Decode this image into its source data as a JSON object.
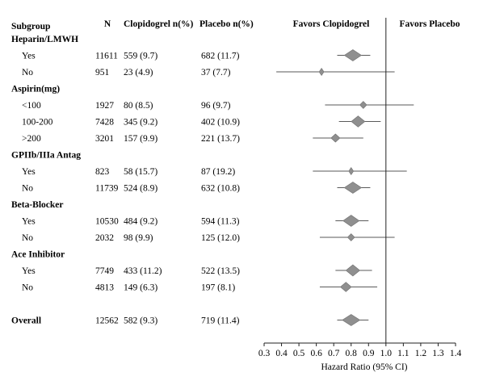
{
  "chart_data": {
    "type": "forest",
    "headers": {
      "subgroup": "Subgroup",
      "n": "N",
      "clop": "Clopidogrel n(%)",
      "plac": "Placebo n(%)",
      "favors_left": "Favors Clopidogrel",
      "favors_right": "Favors Placebo"
    },
    "xlabel": "Hazard Ratio (95% CI)",
    "xlim": [
      0.3,
      1.4
    ],
    "xticks": [
      "0.3",
      "0.4",
      "0.5",
      "0.6",
      "0.7",
      "0.8",
      "0.9",
      "1.0",
      "1.1",
      "1.2",
      "1.3",
      "1.4"
    ],
    "reference_line": 1.0,
    "rows": [
      {
        "kind": "group",
        "label": "Heparin/LMWH"
      },
      {
        "kind": "item",
        "label": "Yes",
        "n": "11611",
        "clop": "559 (9.7)",
        "plac": "682 (11.7)",
        "hr": 0.81,
        "lo": 0.72,
        "hi": 0.91
      },
      {
        "kind": "item",
        "label": "No",
        "n": "951",
        "clop": "23 (4.9)",
        "plac": "37 (7.7)",
        "hr": 0.63,
        "lo": 0.37,
        "hi": 1.05
      },
      {
        "kind": "group",
        "label": "Aspirin(mg)"
      },
      {
        "kind": "item",
        "label": "<100",
        "n": "1927",
        "clop": "80 (8.5)",
        "plac": "96 (9.7)",
        "hr": 0.87,
        "lo": 0.65,
        "hi": 1.16
      },
      {
        "kind": "item",
        "label": "100-200",
        "n": "7428",
        "clop": "345 (9.2)",
        "plac": "402 (10.9)",
        "hr": 0.84,
        "lo": 0.73,
        "hi": 0.97
      },
      {
        "kind": "item",
        "label": ">200",
        "n": "3201",
        "clop": "157 (9.9)",
        "plac": "221 (13.7)",
        "hr": 0.71,
        "lo": 0.58,
        "hi": 0.87
      },
      {
        "kind": "group",
        "label": "GPIIb/IIIa Antag"
      },
      {
        "kind": "item",
        "label": "Yes",
        "n": "823",
        "clop": "58 (15.7)",
        "plac": "87 (19.2)",
        "hr": 0.8,
        "lo": 0.58,
        "hi": 1.12
      },
      {
        "kind": "item",
        "label": "No",
        "n": "11739",
        "clop": "524 (8.9)",
        "plac": "632 (10.8)",
        "hr": 0.81,
        "lo": 0.72,
        "hi": 0.91
      },
      {
        "kind": "group",
        "label": "Beta-Blocker"
      },
      {
        "kind": "item",
        "label": "Yes",
        "n": "10530",
        "clop": "484 (9.2)",
        "plac": "594 (11.3)",
        "hr": 0.8,
        "lo": 0.71,
        "hi": 0.9
      },
      {
        "kind": "item",
        "label": "No",
        "n": "2032",
        "clop": "98 (9.9)",
        "plac": "125 (12.0)",
        "hr": 0.8,
        "lo": 0.62,
        "hi": 1.05
      },
      {
        "kind": "group",
        "label": "Ace Inhibitor"
      },
      {
        "kind": "item",
        "label": "Yes",
        "n": "7749",
        "clop": "433 (11.2)",
        "plac": "522 (13.5)",
        "hr": 0.81,
        "lo": 0.71,
        "hi": 0.92
      },
      {
        "kind": "item",
        "label": "No",
        "n": "4813",
        "clop": "149 (6.3)",
        "plac": "197 (8.1)",
        "hr": 0.77,
        "lo": 0.62,
        "hi": 0.95
      },
      {
        "kind": "spacer"
      },
      {
        "kind": "overall",
        "label": "Overall",
        "n": "12562",
        "clop": "582 (9.3)",
        "plac": "719 (11.4)",
        "hr": 0.8,
        "lo": 0.72,
        "hi": 0.9
      }
    ]
  }
}
